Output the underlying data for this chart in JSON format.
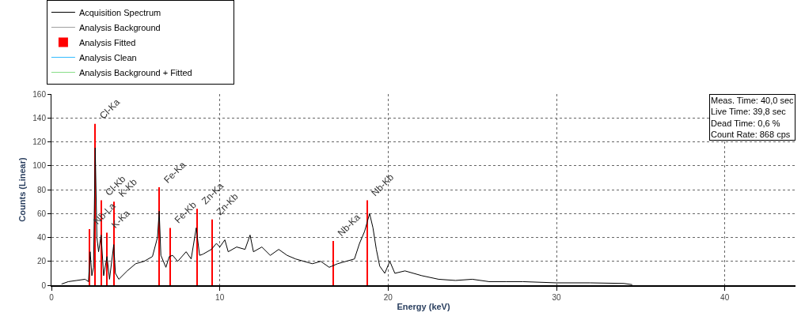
{
  "chart_data": {
    "type": "line",
    "xlabel": "Energy (keV)",
    "ylabel": "Counts (Linear)",
    "xlim": [
      0,
      44.2
    ],
    "ylim": [
      0,
      160
    ],
    "xticks": [
      0,
      10,
      20,
      30,
      40
    ],
    "yticks": [
      0,
      20,
      40,
      60,
      80,
      100,
      120,
      140,
      160
    ],
    "grid": true,
    "legend": "top",
    "marker": "none",
    "line_style": "solid",
    "series": [
      {
        "name": "Acquisition Spectrum",
        "color": "#000000",
        "x": [
          0.6,
          1.0,
          1.5,
          2.0,
          2.2,
          2.3,
          2.4,
          2.5,
          2.6,
          2.7,
          2.8,
          2.95,
          3.1,
          3.3,
          3.45,
          3.7,
          3.8,
          4.0,
          4.5,
          5.0,
          5.5,
          6.0,
          6.3,
          6.4,
          6.5,
          6.8,
          7.0,
          7.2,
          7.5,
          8.0,
          8.3,
          8.6,
          8.8,
          9.0,
          9.5,
          9.8,
          10.0,
          10.3,
          10.5,
          11.0,
          11.5,
          11.8,
          12.0,
          12.5,
          13.0,
          13.5,
          14.0,
          14.5,
          15.0,
          15.5,
          16.0,
          16.5,
          17.0,
          17.5,
          18.0,
          18.3,
          18.6,
          18.9,
          19.1,
          19.3,
          19.5,
          19.8,
          20.1,
          20.4,
          21.0,
          22.0,
          23.0,
          24.0,
          25.0,
          26.0,
          27.0,
          28.0,
          30.0,
          32.0,
          34.0,
          34.5
        ],
        "values": [
          1,
          3,
          4,
          5,
          3,
          28,
          8,
          15,
          115,
          40,
          28,
          42,
          8,
          24,
          5,
          34,
          10,
          5,
          12,
          18,
          20,
          24,
          40,
          62,
          25,
          15,
          24,
          25,
          20,
          28,
          22,
          48,
          25,
          26,
          30,
          35,
          32,
          38,
          28,
          32,
          30,
          42,
          28,
          32,
          25,
          30,
          25,
          22,
          20,
          18,
          20,
          15,
          18,
          20,
          22,
          35,
          45,
          60,
          48,
          30,
          16,
          10,
          20,
          10,
          12,
          8,
          5,
          4,
          5,
          3,
          3,
          3,
          2,
          2,
          1.5,
          0.5
        ]
      },
      {
        "name": "Analysis Background",
        "color": "#a0a0a0"
      },
      {
        "name": "Analysis Fitted",
        "color": "#ff0000",
        "type": "bar",
        "x": [
          2.26,
          2.6,
          2.95,
          3.31,
          3.7,
          6.41,
          7.04,
          8.64,
          9.55,
          16.74,
          18.74
        ],
        "values": [
          47,
          135,
          71,
          44,
          70,
          82,
          48,
          64,
          55,
          37,
          71
        ]
      },
      {
        "name": "Analysis Clean",
        "color": "#33bbff"
      },
      {
        "name": "Analysis Background + Fitted",
        "color": "#88dd88"
      }
    ],
    "annotations": [
      {
        "text": "Nb-La",
        "x": 2.26,
        "y": 47
      },
      {
        "text": "Cl-Ka",
        "x": 2.6,
        "y": 135
      },
      {
        "text": "Cl-Kb",
        "x": 2.95,
        "y": 71
      },
      {
        "text": "K-Ka",
        "x": 3.31,
        "y": 44
      },
      {
        "text": "K-Kb",
        "x": 3.7,
        "y": 70
      },
      {
        "text": "Fe-Ka",
        "x": 6.41,
        "y": 82
      },
      {
        "text": "Fe-Kb",
        "x": 7.04,
        "y": 48
      },
      {
        "text": "Zn-Ka",
        "x": 8.64,
        "y": 64
      },
      {
        "text": "Zn-Kb",
        "x": 9.55,
        "y": 55
      },
      {
        "text": "Nb-Ka",
        "x": 16.74,
        "y": 37
      },
      {
        "text": "Nb-Kb",
        "x": 18.74,
        "y": 71
      },
      "Meas. Time: 40,0 sec",
      "Live Time: 39,8 sec",
      "Dead Time: 0,6 %",
      "Count Rate: 868 cps"
    ]
  }
}
